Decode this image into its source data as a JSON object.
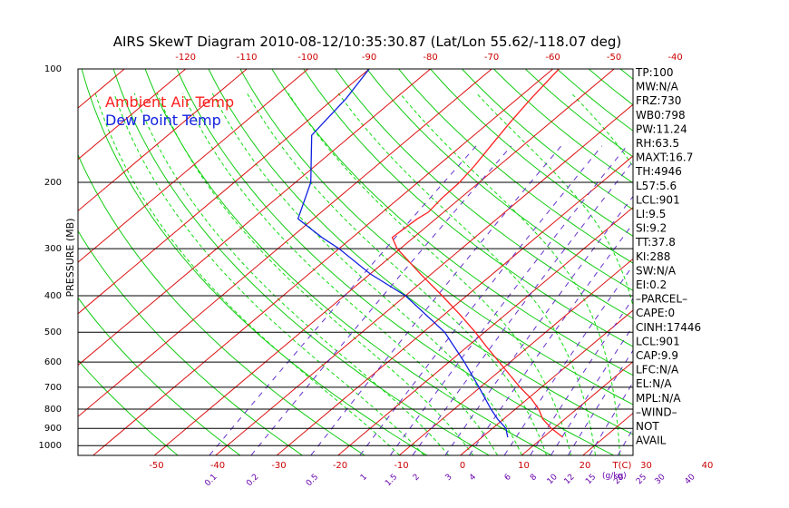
{
  "chart_data": {
    "type": "line",
    "title": "AIRS SkewT Diagram 2010-08-12/10:35:30.87 (Lat/Lon 55.62/-118.07 deg)",
    "ylabel": "PRESSURE (MB)",
    "y_scale": "log-inverted",
    "ylim": [
      1050,
      100
    ],
    "pressure_ticks": [
      "100",
      "200",
      "300",
      "400",
      "500",
      "600",
      "700",
      "800",
      "900",
      "1000"
    ],
    "top_temp_ticks": [
      "-120",
      "-110",
      "-100",
      "-90",
      "-80",
      "-70",
      "-60",
      "-50",
      "-40"
    ],
    "bottom_temp_ticks": [
      "-50",
      "-40",
      "-30",
      "-20",
      "-10",
      "0",
      "10",
      "20",
      "30",
      "40"
    ],
    "bottom_axis_label": "T(C)",
    "mixing_ratio_ticks": [
      "0.1",
      "0.2",
      "0.5",
      "1",
      "1.5",
      "2",
      "3",
      "4",
      "6",
      "8",
      "10",
      "12",
      "15",
      "20",
      "25",
      "30",
      "40"
    ],
    "mixing_ratio_label": "(g/kg)",
    "legend": [
      {
        "label": "Ambient Air Temp",
        "color": "#ff2020"
      },
      {
        "label": "Dew Point Temp",
        "color": "#1020e0"
      }
    ],
    "series": [
      {
        "name": "Ambient Air Temp",
        "color": "#ff2020",
        "points": [
          {
            "p": 950,
            "t": 13.2
          },
          {
            "p": 900,
            "t": 9.6
          },
          {
            "p": 850,
            "t": 6.4
          },
          {
            "p": 800,
            "t": 3.8
          },
          {
            "p": 750,
            "t": 0.5
          },
          {
            "p": 700,
            "t": -3.5
          },
          {
            "p": 650,
            "t": -7.5
          },
          {
            "p": 600,
            "t": -11.8
          },
          {
            "p": 550,
            "t": -16.5
          },
          {
            "p": 500,
            "t": -21.5
          },
          {
            "p": 450,
            "t": -27.3
          },
          {
            "p": 400,
            "t": -34.0
          },
          {
            "p": 350,
            "t": -41.8
          },
          {
            "p": 300,
            "t": -50.5
          },
          {
            "p": 280,
            "t": -53.5
          },
          {
            "p": 250,
            "t": -53.0
          },
          {
            "p": 240,
            "t": -52.5
          },
          {
            "p": 220,
            "t": -53.0
          },
          {
            "p": 200,
            "t": -53.2
          },
          {
            "p": 180,
            "t": -54.0
          },
          {
            "p": 160,
            "t": -55.2
          },
          {
            "p": 140,
            "t": -56.5
          },
          {
            "p": 120,
            "t": -57.8
          },
          {
            "p": 100,
            "t": -59.0
          }
        ]
      },
      {
        "name": "Dew Point Temp",
        "color": "#1020e0",
        "points": [
          {
            "p": 950,
            "t": 4.2
          },
          {
            "p": 900,
            "t": 2.2
          },
          {
            "p": 850,
            "t": -1.0
          },
          {
            "p": 800,
            "t": -4.0
          },
          {
            "p": 700,
            "t": -10.2
          },
          {
            "p": 600,
            "t": -17.5
          },
          {
            "p": 500,
            "t": -26.5
          },
          {
            "p": 400,
            "t": -40.0
          },
          {
            "p": 350,
            "t": -50.0
          },
          {
            "p": 300,
            "t": -60.0
          },
          {
            "p": 280,
            "t": -65.0
          },
          {
            "p": 250,
            "t": -72.5
          },
          {
            "p": 200,
            "t": -77.5
          },
          {
            "p": 150,
            "t": -86.5
          },
          {
            "p": 120,
            "t": -88.0
          },
          {
            "p": 100,
            "t": -90.0
          }
        ]
      }
    ]
  },
  "indices": [
    "TP:100",
    "MW:N/A",
    "FRZ:730",
    "WB0:798",
    "PW:11.24",
    "RH:63.5",
    "MAXT:16.7",
    "TH:4946",
    "L57:5.6",
    "LCL:901",
    "LI:9.5",
    "SI:9.2",
    "TT:37.8",
    "KI:288",
    "SW:N/A",
    "EI:0.2",
    "–PARCEL–",
    "CAPE:0",
    "CINH:17446",
    "LCL:901",
    "CAP:9.9",
    "LFC:N/A",
    "EL:N/A",
    "MPL:N/A",
    "–WIND–",
    "NOT",
    "AVAIL"
  ],
  "colors": {
    "isotherm": "#dd1111",
    "dry_adiabat": "#11cc11",
    "moist_adiabat": "#11dd11",
    "mixing_ratio": "#6633cc",
    "axis": "#000000"
  }
}
